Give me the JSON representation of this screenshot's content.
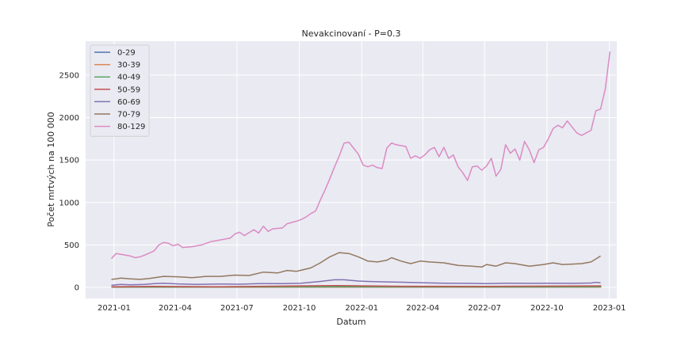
{
  "chart_data": {
    "type": "line",
    "title": "Nevakcinovaní - P=0.3",
    "xlabel": "Datum",
    "ylabel": "Počet mrtvých na 100 000",
    "ylim": [
      -130,
      2900
    ],
    "xlim": [
      "2020-11-20",
      "2023-01-12"
    ],
    "grid": true,
    "legend_position": "top-left",
    "y_ticks": [
      0,
      500,
      1000,
      1500,
      2000,
      2500
    ],
    "x_ticks": [
      {
        "date": "2021-01-01",
        "label": "2021-01"
      },
      {
        "date": "2021-04-01",
        "label": "2021-04"
      },
      {
        "date": "2021-07-01",
        "label": "2021-07"
      },
      {
        "date": "2021-10-01",
        "label": "2021-10"
      },
      {
        "date": "2022-01-01",
        "label": "2022-01"
      },
      {
        "date": "2022-04-01",
        "label": "2022-04"
      },
      {
        "date": "2022-07-01",
        "label": "2022-07"
      },
      {
        "date": "2022-10-01",
        "label": "2022-10"
      },
      {
        "date": "2023-01-01",
        "label": "2023-01"
      }
    ],
    "series": [
      {
        "name": "0-29",
        "color": "#4c72b0",
        "points": [
          [
            "2020-12-28",
            3
          ],
          [
            "2021-06-01",
            3
          ],
          [
            "2022-01-01",
            4
          ],
          [
            "2022-07-01",
            3
          ],
          [
            "2022-12-20",
            5
          ]
        ]
      },
      {
        "name": "30-39",
        "color": "#dd8452",
        "points": [
          [
            "2020-12-28",
            3
          ],
          [
            "2021-06-01",
            3
          ],
          [
            "2022-01-01",
            4
          ],
          [
            "2022-07-01",
            3
          ],
          [
            "2022-12-20",
            4
          ]
        ]
      },
      {
        "name": "40-49",
        "color": "#55a868",
        "points": [
          [
            "2020-12-28",
            4
          ],
          [
            "2021-06-01",
            4
          ],
          [
            "2021-11-25",
            8
          ],
          [
            "2022-01-01",
            7
          ],
          [
            "2022-07-01",
            5
          ],
          [
            "2022-12-20",
            7
          ]
        ]
      },
      {
        "name": "50-59",
        "color": "#c44e52",
        "points": [
          [
            "2020-12-28",
            8
          ],
          [
            "2021-03-01",
            12
          ],
          [
            "2021-06-01",
            8
          ],
          [
            "2021-11-25",
            22
          ],
          [
            "2022-03-01",
            14
          ],
          [
            "2022-07-01",
            12
          ],
          [
            "2022-12-20",
            18
          ]
        ]
      },
      {
        "name": "60-69",
        "color": "#8172b3",
        "points": [
          [
            "2020-12-28",
            25
          ],
          [
            "2021-01-04",
            30
          ],
          [
            "2021-01-11",
            35
          ],
          [
            "2021-01-25",
            30
          ],
          [
            "2021-02-15",
            35
          ],
          [
            "2021-03-01",
            45
          ],
          [
            "2021-03-15",
            50
          ],
          [
            "2021-04-05",
            42
          ],
          [
            "2021-05-03",
            36
          ],
          [
            "2021-06-07",
            40
          ],
          [
            "2021-07-05",
            38
          ],
          [
            "2021-08-02",
            45
          ],
          [
            "2021-09-06",
            45
          ],
          [
            "2021-10-04",
            50
          ],
          [
            "2021-11-01",
            70
          ],
          [
            "2021-11-22",
            90
          ],
          [
            "2021-12-06",
            90
          ],
          [
            "2021-12-27",
            75
          ],
          [
            "2022-01-10",
            70
          ],
          [
            "2022-02-07",
            65
          ],
          [
            "2022-03-07",
            60
          ],
          [
            "2022-04-04",
            55
          ],
          [
            "2022-05-02",
            50
          ],
          [
            "2022-06-06",
            48
          ],
          [
            "2022-07-04",
            45
          ],
          [
            "2022-08-01",
            50
          ],
          [
            "2022-09-05",
            48
          ],
          [
            "2022-10-03",
            50
          ],
          [
            "2022-11-07",
            48
          ],
          [
            "2022-12-05",
            52
          ],
          [
            "2022-12-12",
            60
          ],
          [
            "2022-12-19",
            55
          ]
        ]
      },
      {
        "name": "70-79",
        "color": "#937860",
        "points": [
          [
            "2020-12-28",
            95
          ],
          [
            "2021-01-04",
            100
          ],
          [
            "2021-01-11",
            110
          ],
          [
            "2021-01-25",
            100
          ],
          [
            "2021-02-08",
            95
          ],
          [
            "2021-02-22",
            105
          ],
          [
            "2021-03-15",
            130
          ],
          [
            "2021-04-05",
            125
          ],
          [
            "2021-04-26",
            115
          ],
          [
            "2021-05-17",
            130
          ],
          [
            "2021-06-07",
            130
          ],
          [
            "2021-06-28",
            145
          ],
          [
            "2021-07-19",
            140
          ],
          [
            "2021-08-09",
            180
          ],
          [
            "2021-08-30",
            170
          ],
          [
            "2021-09-13",
            200
          ],
          [
            "2021-09-27",
            190
          ],
          [
            "2021-10-18",
            230
          ],
          [
            "2021-11-01",
            290
          ],
          [
            "2021-11-15",
            360
          ],
          [
            "2021-11-29",
            410
          ],
          [
            "2021-12-13",
            400
          ],
          [
            "2021-12-27",
            360
          ],
          [
            "2022-01-10",
            310
          ],
          [
            "2022-01-24",
            300
          ],
          [
            "2022-02-07",
            320
          ],
          [
            "2022-02-14",
            350
          ],
          [
            "2022-02-28",
            310
          ],
          [
            "2022-03-14",
            280
          ],
          [
            "2022-03-28",
            310
          ],
          [
            "2022-04-11",
            300
          ],
          [
            "2022-05-02",
            290
          ],
          [
            "2022-05-23",
            260
          ],
          [
            "2022-06-13",
            250
          ],
          [
            "2022-06-27",
            240
          ],
          [
            "2022-07-04",
            270
          ],
          [
            "2022-07-18",
            250
          ],
          [
            "2022-08-01",
            290
          ],
          [
            "2022-08-15",
            280
          ],
          [
            "2022-09-05",
            250
          ],
          [
            "2022-09-26",
            270
          ],
          [
            "2022-10-10",
            290
          ],
          [
            "2022-10-24",
            270
          ],
          [
            "2022-11-07",
            275
          ],
          [
            "2022-11-21",
            280
          ],
          [
            "2022-12-05",
            300
          ],
          [
            "2022-12-19",
            370
          ]
        ]
      },
      {
        "name": "80-129",
        "color": "#da8bc3",
        "points": [
          [
            "2020-12-28",
            340
          ],
          [
            "2021-01-04",
            400
          ],
          [
            "2021-01-11",
            390
          ],
          [
            "2021-01-25",
            370
          ],
          [
            "2021-02-01",
            350
          ],
          [
            "2021-02-08",
            360
          ],
          [
            "2021-02-15",
            380
          ],
          [
            "2021-03-01",
            430
          ],
          [
            "2021-03-08",
            500
          ],
          [
            "2021-03-15",
            530
          ],
          [
            "2021-03-22",
            520
          ],
          [
            "2021-03-29",
            490
          ],
          [
            "2021-04-05",
            510
          ],
          [
            "2021-04-12",
            470
          ],
          [
            "2021-04-26",
            480
          ],
          [
            "2021-05-10",
            500
          ],
          [
            "2021-05-24",
            540
          ],
          [
            "2021-06-07",
            560
          ],
          [
            "2021-06-21",
            580
          ],
          [
            "2021-06-28",
            630
          ],
          [
            "2021-07-05",
            650
          ],
          [
            "2021-07-12",
            610
          ],
          [
            "2021-07-26",
            680
          ],
          [
            "2021-08-02",
            640
          ],
          [
            "2021-08-09",
            720
          ],
          [
            "2021-08-16",
            660
          ],
          [
            "2021-08-23",
            690
          ],
          [
            "2021-09-06",
            700
          ],
          [
            "2021-09-13",
            750
          ],
          [
            "2021-09-27",
            780
          ],
          [
            "2021-10-04",
            800
          ],
          [
            "2021-10-11",
            830
          ],
          [
            "2021-10-18",
            870
          ],
          [
            "2021-10-25",
            900
          ],
          [
            "2021-11-01",
            1030
          ],
          [
            "2021-11-08",
            1150
          ],
          [
            "2021-11-15",
            1280
          ],
          [
            "2021-11-22",
            1420
          ],
          [
            "2021-11-29",
            1550
          ],
          [
            "2021-12-06",
            1700
          ],
          [
            "2021-12-13",
            1710
          ],
          [
            "2021-12-20",
            1640
          ],
          [
            "2021-12-27",
            1570
          ],
          [
            "2022-01-03",
            1440
          ],
          [
            "2022-01-10",
            1420
          ],
          [
            "2022-01-17",
            1440
          ],
          [
            "2022-01-24",
            1410
          ],
          [
            "2022-01-31",
            1400
          ],
          [
            "2022-02-07",
            1640
          ],
          [
            "2022-02-14",
            1700
          ],
          [
            "2022-02-21",
            1680
          ],
          [
            "2022-03-07",
            1660
          ],
          [
            "2022-03-14",
            1520
          ],
          [
            "2022-03-21",
            1550
          ],
          [
            "2022-03-28",
            1520
          ],
          [
            "2022-04-04",
            1560
          ],
          [
            "2022-04-11",
            1620
          ],
          [
            "2022-04-18",
            1650
          ],
          [
            "2022-04-25",
            1540
          ],
          [
            "2022-05-02",
            1650
          ],
          [
            "2022-05-09",
            1520
          ],
          [
            "2022-05-16",
            1560
          ],
          [
            "2022-05-23",
            1420
          ],
          [
            "2022-05-30",
            1350
          ],
          [
            "2022-06-06",
            1260
          ],
          [
            "2022-06-13",
            1420
          ],
          [
            "2022-06-20",
            1430
          ],
          [
            "2022-06-27",
            1380
          ],
          [
            "2022-07-04",
            1430
          ],
          [
            "2022-07-11",
            1520
          ],
          [
            "2022-07-18",
            1310
          ],
          [
            "2022-07-25",
            1390
          ],
          [
            "2022-08-01",
            1680
          ],
          [
            "2022-08-08",
            1580
          ],
          [
            "2022-08-15",
            1630
          ],
          [
            "2022-08-22",
            1500
          ],
          [
            "2022-08-29",
            1720
          ],
          [
            "2022-09-05",
            1620
          ],
          [
            "2022-09-12",
            1470
          ],
          [
            "2022-09-19",
            1620
          ],
          [
            "2022-09-26",
            1650
          ],
          [
            "2022-10-03",
            1750
          ],
          [
            "2022-10-10",
            1870
          ],
          [
            "2022-10-17",
            1910
          ],
          [
            "2022-10-24",
            1880
          ],
          [
            "2022-10-31",
            1960
          ],
          [
            "2022-11-07",
            1890
          ],
          [
            "2022-11-14",
            1820
          ],
          [
            "2022-11-21",
            1790
          ],
          [
            "2022-11-28",
            1820
          ],
          [
            "2022-12-05",
            1850
          ],
          [
            "2022-12-12",
            2080
          ],
          [
            "2022-12-19",
            2100
          ],
          [
            "2022-12-26",
            2340
          ],
          [
            "2023-01-02",
            2780
          ]
        ]
      }
    ]
  }
}
